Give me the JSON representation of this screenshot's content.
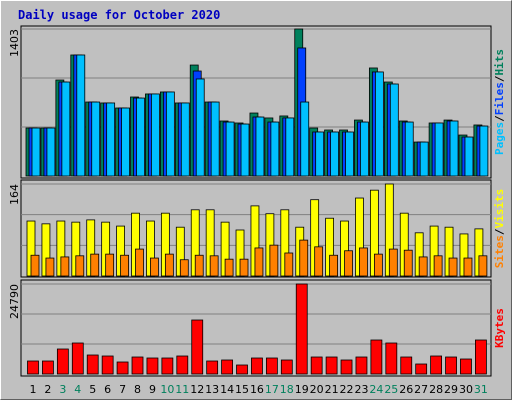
{
  "legend_separator": "/",
  "chart_data": [
    {
      "type": "bar",
      "title": "Daily usage for October 2020",
      "ylim": [
        0,
        1403
      ],
      "yticks": [
        1403
      ],
      "series": [
        {
          "name": "Hits",
          "color": "#00805c",
          "values": [
            458,
            458,
            916,
            1155,
            706,
            697,
            649,
            754,
            783,
            802,
            697,
            1059,
            706,
            525,
            506,
            601,
            554,
            573,
            1403,
            458,
            439,
            439,
            534,
            1031,
            897,
            525,
            324,
            506,
            534,
            391,
            487
          ]
        },
        {
          "name": "Files",
          "color": "#0040ff",
          "values": [
            458,
            458,
            897,
            1155,
            706,
            697,
            649,
            744,
            783,
            802,
            697,
            1002,
            706,
            515,
            496,
            563,
            515,
            554,
            1222,
            420,
            420,
            420,
            515,
            993,
            878,
            515,
            324,
            506,
            525,
            372,
            477
          ]
        },
        {
          "name": "Pages",
          "color": "#00c0ff",
          "values": [
            458,
            458,
            897,
            1155,
            706,
            697,
            649,
            744,
            783,
            802,
            697,
            926,
            706,
            515,
            496,
            563,
            515,
            554,
            706,
            420,
            420,
            420,
            515,
            993,
            878,
            515,
            324,
            506,
            525,
            372,
            477
          ]
        }
      ]
    },
    {
      "type": "bar",
      "ylim": [
        0,
        164
      ],
      "yticks": [
        164
      ],
      "series": [
        {
          "name": "Visits",
          "color": "#ffff00",
          "values": [
            98,
            93,
            98,
            96,
            100,
            96,
            89,
            112,
            98,
            112,
            87,
            118,
            118,
            96,
            82,
            125,
            111,
            118,
            87,
            136,
            103,
            98,
            139,
            153,
            164,
            112,
            77,
            89,
            87,
            75,
            84
          ]
        },
        {
          "name": "Sites",
          "color": "#ff8000",
          "values": [
            37,
            32,
            34,
            36,
            39,
            39,
            37,
            48,
            32,
            39,
            29,
            37,
            36,
            30,
            30,
            50,
            55,
            41,
            64,
            52,
            37,
            45,
            50,
            39,
            48,
            46,
            34,
            36,
            32,
            32,
            36
          ]
        }
      ]
    },
    {
      "type": "bar",
      "ylim": [
        0,
        24790
      ],
      "yticks": [
        24790
      ],
      "categories": [
        "1",
        "2",
        "3",
        "4",
        "5",
        "6",
        "7",
        "8",
        "9",
        "10",
        "11",
        "12",
        "13",
        "14",
        "15",
        "16",
        "17",
        "18",
        "19",
        "20",
        "21",
        "22",
        "23",
        "24",
        "25",
        "26",
        "27",
        "28",
        "29",
        "30",
        "31"
      ],
      "category_colors": [
        "#000000",
        "#000000",
        "#00805c",
        "#00805c",
        "#000000",
        "#000000",
        "#000000",
        "#000000",
        "#000000",
        "#00805c",
        "#00805c",
        "#000000",
        "#000000",
        "#000000",
        "#000000",
        "#000000",
        "#00805c",
        "#00805c",
        "#000000",
        "#000000",
        "#000000",
        "#000000",
        "#000000",
        "#00805c",
        "#00805c",
        "#000000",
        "#000000",
        "#000000",
        "#000000",
        "#000000",
        "#00805c"
      ],
      "series": [
        {
          "name": "KBytes",
          "color": "#ff0000",
          "values": [
            3580,
            3580,
            6885,
            8537,
            5233,
            4957,
            3305,
            4682,
            4406,
            4406,
            4957,
            14872,
            3580,
            3856,
            2479,
            4406,
            4406,
            3856,
            24790,
            4682,
            4682,
            3856,
            4682,
            9364,
            8537,
            4682,
            2754,
            4957,
            4682,
            4131,
            9364
          ]
        }
      ]
    }
  ]
}
